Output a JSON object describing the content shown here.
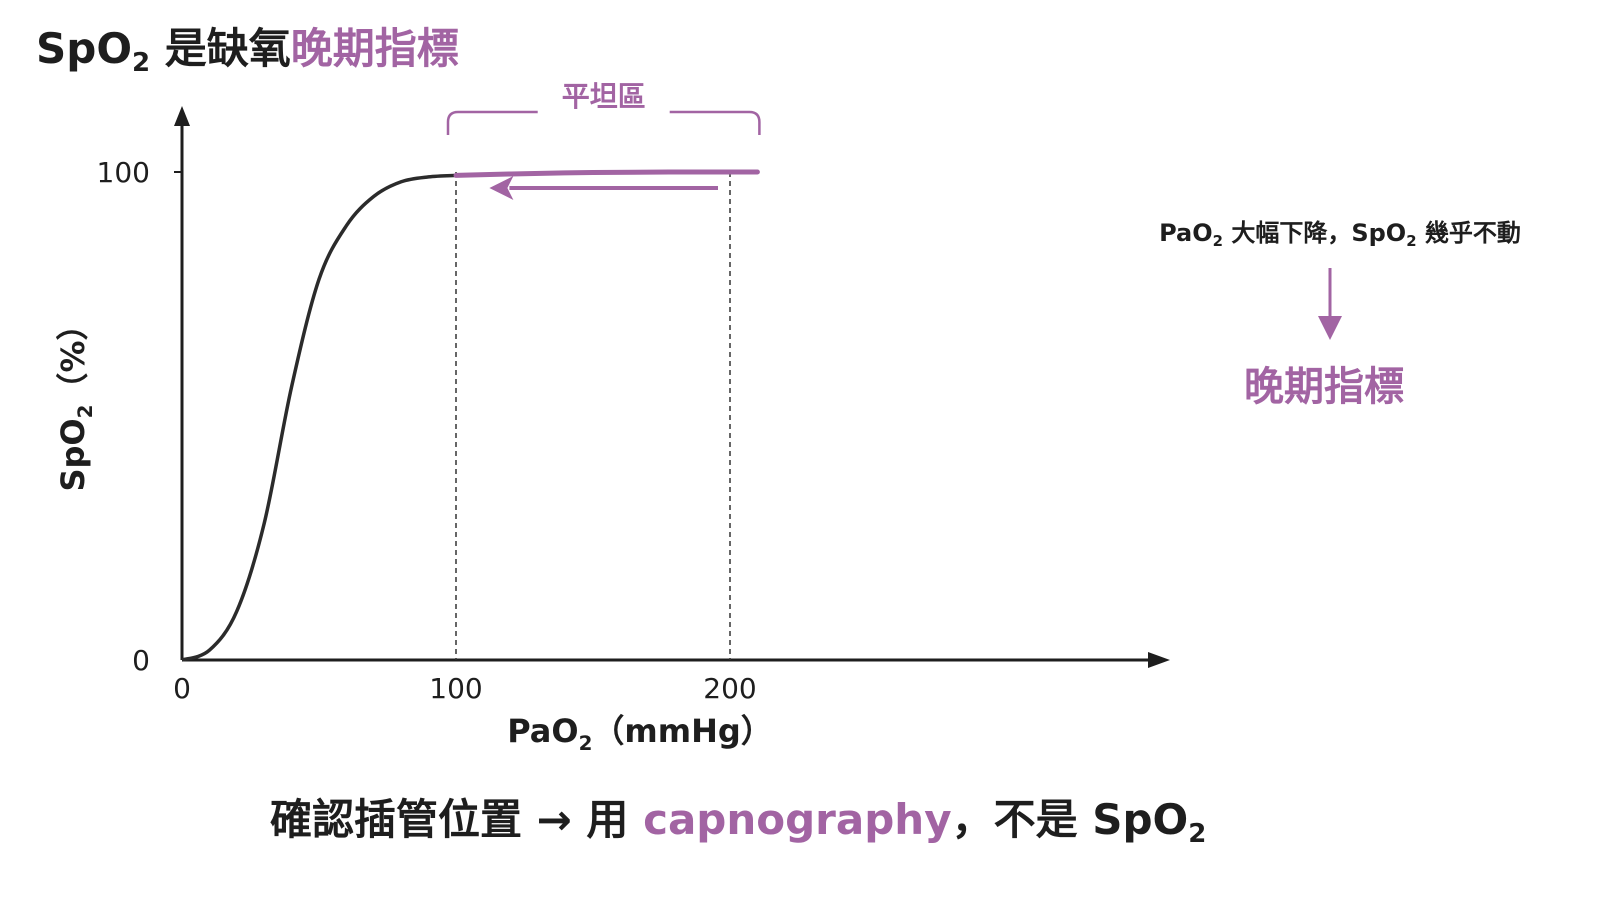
{
  "title": {
    "part1": "SpO",
    "sub": "2",
    "part2": " 是缺氧",
    "highlight": "晚期指標"
  },
  "chart_data": {
    "type": "line",
    "series": [
      {
        "x": [
          0,
          10,
          20,
          30,
          40,
          50,
          60,
          70,
          80,
          90,
          100,
          120,
          150,
          180,
          210
        ],
        "y": [
          0,
          2,
          10,
          28,
          56,
          78,
          89,
          95,
          98,
          99,
          99.3,
          99.6,
          99.9,
          100,
          100
        ]
      }
    ],
    "xlabel": {
      "main": "PaO",
      "sub": "2",
      "rest": "（mmHg）"
    },
    "ylabel": {
      "main": "SpO",
      "sub": "2",
      "rest": "（%）"
    },
    "x_ticks": [
      0,
      100,
      200
    ],
    "y_ticks": [
      0,
      100
    ],
    "xlim": [
      0,
      220
    ],
    "ylim": [
      0,
      100
    ],
    "reference_lines_x": [
      100,
      200
    ],
    "plateau_range": [
      100,
      210
    ],
    "plateau_label": "平坦區",
    "arrow_range": [
      200,
      110
    ]
  },
  "annotation": {
    "line_a": "PaO",
    "line_a_sub": "2",
    "line_b": " 大幅下降，SpO",
    "line_b_sub": "2",
    "line_c": " 幾乎不動",
    "result": "晚期指標"
  },
  "footer": {
    "part1": "確認插管位置 → 用 ",
    "highlight": "capnography",
    "part2": "，不是 SpO",
    "sub": "2"
  },
  "colors": {
    "accent": "#a264a3",
    "text": "#1e1e1e",
    "curve": "#2b2b2b"
  }
}
